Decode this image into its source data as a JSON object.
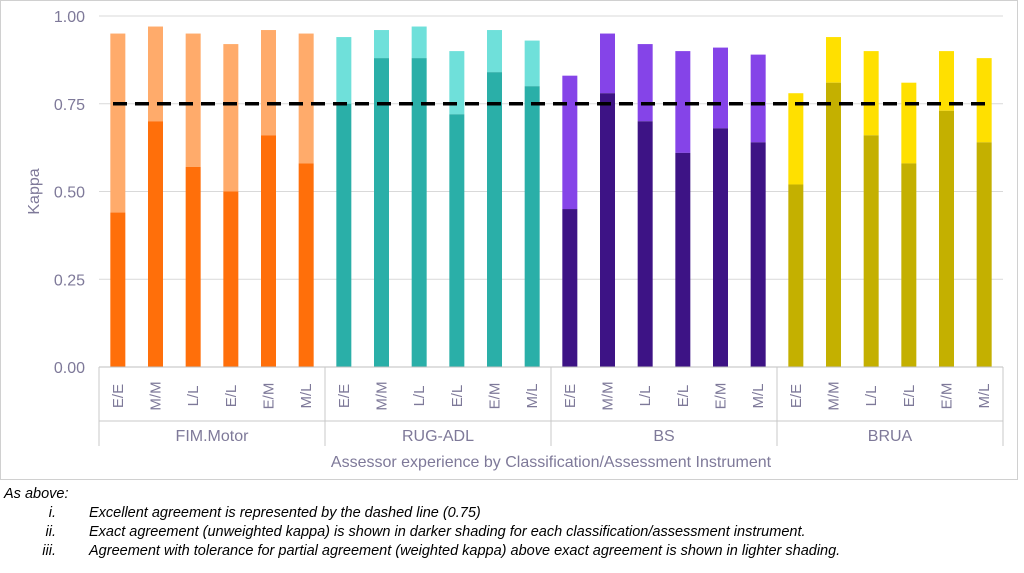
{
  "chart_data": {
    "type": "bar",
    "stacked": true,
    "ylabel": "Kappa",
    "xlabel": "Assessor experience by Classification/Assessment Instrument",
    "ylim": [
      0,
      1.0
    ],
    "yticks": [
      "0.00",
      "0.25",
      "0.50",
      "0.75",
      "1.00"
    ],
    "ytick_values": [
      0,
      0.25,
      0.5,
      0.75,
      1.0
    ],
    "reference_line": {
      "value": 0.75,
      "style": "dashed",
      "color": "#000000"
    },
    "grid": "horizontal",
    "groups": [
      {
        "name": "FIM.Motor",
        "dark_color": "#ff6f0a",
        "light_color": "#ffab6b",
        "categories": [
          "E/E",
          "M/M",
          "L/L",
          "E/L",
          "E/M",
          "M/L"
        ],
        "exact": [
          0.44,
          0.7,
          0.57,
          0.5,
          0.66,
          0.58
        ],
        "weighted": [
          0.95,
          0.97,
          0.95,
          0.92,
          0.96,
          0.95
        ]
      },
      {
        "name": "RUG-ADL",
        "dark_color": "#2aafa8",
        "light_color": "#6fe0da",
        "categories": [
          "E/E",
          "M/M",
          "L/L",
          "E/L",
          "E/M",
          "M/L"
        ],
        "exact": [
          0.75,
          0.88,
          0.88,
          0.72,
          0.84,
          0.8
        ],
        "weighted": [
          0.94,
          0.96,
          0.97,
          0.9,
          0.96,
          0.93
        ]
      },
      {
        "name": "BS",
        "dark_color": "#3d1385",
        "light_color": "#8544e8",
        "categories": [
          "E/E",
          "M/M",
          "L/L",
          "E/L",
          "E/M",
          "M/L"
        ],
        "exact": [
          0.45,
          0.78,
          0.7,
          0.61,
          0.68,
          0.64
        ],
        "weighted": [
          0.83,
          0.95,
          0.92,
          0.9,
          0.91,
          0.89
        ]
      },
      {
        "name": "BRUA",
        "dark_color": "#c4b000",
        "light_color": "#ffe000",
        "categories": [
          "E/E",
          "M/M",
          "L/L",
          "E/L",
          "E/M",
          "M/L"
        ],
        "exact": [
          0.52,
          0.81,
          0.66,
          0.58,
          0.73,
          0.64
        ],
        "weighted": [
          0.78,
          0.94,
          0.9,
          0.81,
          0.9,
          0.88
        ]
      }
    ]
  },
  "notes": {
    "lead": "As above:",
    "items": [
      {
        "num": "i.",
        "text": "Excellent agreement is represented by the dashed line (0.75)"
      },
      {
        "num": "ii.",
        "text": "Exact agreement (unweighted kappa) is shown in darker shading for each classification/assessment instrument."
      },
      {
        "num": "iii.",
        "text": "Agreement with tolerance for partial agreement (weighted kappa) above exact agreement is shown in lighter shading."
      }
    ]
  }
}
